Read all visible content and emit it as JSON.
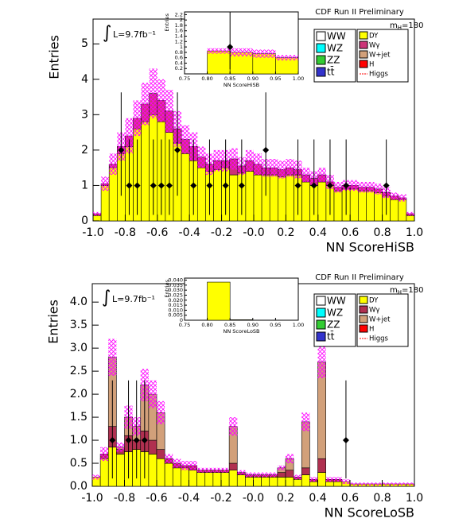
{
  "chart_data": [
    {
      "type": "histogram",
      "title": "CDF Run II Preliminary",
      "mass_label": {
        "m": "m",
        "sub": "H",
        "rest": "=180"
      },
      "integral": "∫",
      "lumi": "L=9.7fb⁻¹",
      "x_label": "NN ScoreHiSB",
      "y_label": "Entries",
      "xlim": [
        -1,
        1
      ],
      "ylim": [
        0,
        5.7
      ],
      "xticks": [
        {
          "value": -1,
          "label": "-1.0"
        },
        -0.8,
        -0.6,
        -0.4,
        -0.2,
        {
          "value": 0,
          "label": "-0.0"
        },
        0.2,
        0.4,
        0.6,
        0.8,
        {
          "value": 1,
          "label": "1.0"
        }
      ],
      "yticks": [
        0,
        1,
        2,
        3,
        4,
        5
      ],
      "bins": [
        -1,
        -0.95,
        -0.9,
        -0.85,
        -0.8,
        -0.75,
        -0.7,
        -0.65,
        -0.6,
        -0.55,
        -0.5,
        -0.45,
        -0.4,
        -0.35,
        -0.3,
        -0.25,
        -0.2,
        -0.15,
        -0.1,
        -0.05,
        0,
        0.05,
        0.1,
        0.15,
        0.2,
        0.25,
        0.3,
        0.35,
        0.4,
        0.45,
        0.5,
        0.55,
        0.6,
        0.65,
        0.7,
        0.75,
        0.8,
        0.85,
        0.9,
        0.95,
        1
      ],
      "series": [
        {
          "name": "DY",
          "color": "#ffff00",
          "values": [
            0.15,
            1.0,
            1.5,
            1.9,
            2.1,
            2.6,
            2.8,
            3.0,
            2.8,
            2.5,
            2.2,
            1.9,
            1.7,
            1.5,
            1.4,
            1.45,
            1.5,
            1.3,
            1.35,
            1.4,
            1.3,
            1.3,
            1.3,
            1.25,
            1.3,
            1.3,
            1.1,
            1.0,
            1.1,
            1.0,
            0.85,
            0.9,
            0.9,
            0.85,
            0.85,
            0.8,
            0.7,
            0.6,
            0.6,
            0.15
          ]
        },
        {
          "name": "Wγ",
          "color": "#cc3377",
          "values": [
            0.05,
            0.05,
            0.1,
            0.2,
            0.3,
            0.3,
            0.5,
            0.6,
            0.6,
            0.6,
            0.4,
            0.4,
            0.4,
            0.3,
            0.2,
            0.25,
            0.2,
            0.45,
            0.2,
            0.3,
            0.3,
            0.2,
            0.2,
            0.2,
            0.2,
            0.15,
            0.2,
            0.2,
            0.2,
            0.1,
            0.1,
            0.1,
            0.1,
            0.1,
            0.1,
            0.1,
            0.1,
            0.1,
            0.05,
            0.05
          ]
        },
        {
          "name": "W+jet",
          "color": "#d2a07a",
          "values": [
            0,
            0,
            0,
            0,
            0,
            0,
            0,
            0,
            0,
            0,
            0,
            0,
            0,
            0,
            0,
            0,
            0,
            0,
            0,
            0,
            0,
            0,
            0,
            0,
            0,
            0,
            0,
            0,
            0,
            0,
            0,
            0,
            0,
            0,
            0,
            0,
            0,
            0,
            0,
            0
          ]
        }
      ],
      "uncertainty": [
        0.05,
        0.2,
        0.3,
        0.4,
        0.5,
        0.5,
        0.6,
        0.7,
        0.6,
        0.6,
        0.5,
        0.4,
        0.4,
        0.3,
        0.3,
        0.3,
        0.3,
        0.3,
        0.25,
        0.3,
        0.3,
        0.25,
        0.25,
        0.25,
        0.25,
        0.25,
        0.2,
        0.2,
        0.2,
        0.2,
        0.15,
        0.15,
        0.15,
        0.15,
        0.15,
        0.15,
        0.15,
        0.1,
        0.1,
        0.05
      ],
      "data_points": {
        "x": [
          -0.825,
          -0.775,
          -0.725,
          -0.625,
          -0.575,
          -0.525,
          -0.475,
          -0.375,
          -0.275,
          -0.175,
          -0.075,
          0.075,
          0.275,
          0.375,
          0.475,
          0.575,
          0.825
        ],
        "values": [
          2,
          1,
          1,
          1,
          1,
          1,
          2,
          1,
          1,
          1,
          1,
          2,
          1,
          1,
          1,
          1,
          1
        ],
        "err_low": [
          1.29,
          0.83,
          0.83,
          0.83,
          0.83,
          0.83,
          1.29,
          0.83,
          0.83,
          0.83,
          0.83,
          1.29,
          0.83,
          0.83,
          0.83,
          0.83,
          0.83
        ],
        "err_high": [
          1.63,
          1.3,
          1.3,
          1.3,
          1.3,
          1.3,
          1.63,
          1.3,
          1.3,
          1.3,
          1.3,
          1.63,
          1.3,
          1.3,
          1.3,
          1.3,
          1.3
        ]
      },
      "legend_left": [
        {
          "name": "WW",
          "color": "#ffffff"
        },
        {
          "name": "WZ",
          "color": "#00ffff"
        },
        {
          "name": "ZZ",
          "color": "#33cc33"
        },
        {
          "name": "tt̄",
          "color": "#3333cc"
        }
      ],
      "legend_extra": [
        {
          "name": "H",
          "color": "#ff0000"
        },
        {
          "name": "Higgs",
          "color": "#ff0000",
          "style": "dashed"
        }
      ],
      "inset": {
        "x_label": "NN ScoreHiSB",
        "y_label": "Entries",
        "xlim": [
          0.75,
          1
        ],
        "ylim": [
          0,
          2.3
        ],
        "xticks": [
          0.75,
          {
            "value": 0.8,
            "label": "0.80"
          },
          0.85,
          {
            "value": 0.9,
            "label": "0.90"
          },
          0.95,
          {
            "value": 1,
            "label": "1.00"
          }
        ],
        "yticks": [
          0.2,
          0.4,
          0.6,
          0.8,
          1,
          1.2,
          1.4,
          1.6,
          1.8,
          2,
          2.2
        ],
        "bins": [
          0.75,
          0.8,
          0.85,
          0.9,
          0.95,
          1.0
        ],
        "values": [
          0,
          0.85,
          0.8,
          0.75,
          0.6
        ],
        "uncertainty": [
          0,
          0.1,
          0.15,
          0.15,
          0.1
        ],
        "data_points": {
          "x": [
            0.85
          ],
          "values": [
            1
          ],
          "err_low": [
            0.83
          ],
          "err_high": [
            1.3
          ]
        }
      }
    },
    {
      "type": "histogram",
      "title": "CDF Run II Preliminary",
      "mass_label": {
        "m": "m",
        "sub": "H",
        "rest": "=180"
      },
      "integral": "∫",
      "lumi": "L=9.7fb⁻¹",
      "x_label": "NN ScoreLoSB",
      "y_label": "Entries",
      "xlim": [
        -1,
        1
      ],
      "ylim": [
        0,
        4.4
      ],
      "xticks": [
        {
          "value": -1,
          "label": "-1.0"
        },
        -0.8,
        -0.6,
        -0.4,
        -0.2,
        {
          "value": 0,
          "label": "-0.0"
        },
        0.2,
        0.4,
        0.6,
        0.8,
        {
          "value": 1,
          "label": "1.0"
        }
      ],
      "yticks": [
        {
          "value": 0,
          "label": "0.0"
        },
        0.5,
        {
          "value": 1,
          "label": "1.0"
        },
        1.5,
        {
          "value": 2,
          "label": "2.0"
        },
        2.5,
        {
          "value": 3,
          "label": "3.0"
        },
        3.5,
        {
          "value": 4,
          "label": "4.0"
        }
      ],
      "bins": [
        -1,
        -0.95,
        -0.9,
        -0.85,
        -0.8,
        -0.75,
        -0.7,
        -0.65,
        -0.6,
        -0.55,
        -0.5,
        -0.45,
        -0.4,
        -0.35,
        -0.3,
        -0.25,
        -0.2,
        -0.15,
        -0.1,
        -0.05,
        0,
        0.05,
        0.1,
        0.15,
        0.2,
        0.25,
        0.3,
        0.35,
        0.4,
        0.45,
        0.5,
        0.55,
        0.6,
        0.65,
        0.7,
        0.75,
        0.8,
        0.85,
        0.9,
        0.95,
        1
      ],
      "series": [
        {
          "name": "DY",
          "color": "#ffff00",
          "values": [
            0.2,
            0.6,
            0.85,
            0.7,
            0.75,
            0.8,
            0.75,
            0.7,
            0.6,
            0.5,
            0.4,
            0.4,
            0.35,
            0.3,
            0.3,
            0.3,
            0.3,
            0.35,
            0.25,
            0.2,
            0.2,
            0.2,
            0.2,
            0.2,
            0.2,
            0.15,
            0.25,
            0.1,
            0.3,
            0.1,
            0.1,
            0.1,
            0.05,
            0.05,
            0.05,
            0.05,
            0.05,
            0.05,
            0.05,
            0.05
          ]
        },
        {
          "name": "Wγ",
          "color": "#b03050",
          "values": [
            0,
            0.1,
            0.45,
            0.1,
            0.35,
            0.2,
            0.45,
            0.3,
            0.2,
            0.1,
            0.1,
            0.05,
            0.1,
            0.05,
            0.05,
            0.05,
            0.05,
            0.15,
            0.05,
            0.05,
            0.05,
            0.05,
            0.05,
            0.1,
            0.15,
            0.05,
            0.15,
            0.05,
            0.3,
            0.05,
            0.05,
            0,
            0,
            0,
            0,
            0,
            0,
            0,
            0,
            0
          ]
        },
        {
          "name": "W+jet",
          "color": "#d2a07a",
          "values": [
            0,
            0,
            1.5,
            0.05,
            0.4,
            0.3,
            1.0,
            1.0,
            0.8,
            0,
            0,
            0,
            0,
            0,
            0,
            0,
            0,
            0.8,
            0,
            0,
            0,
            0,
            0,
            0.1,
            0.25,
            0,
            1.0,
            0,
            2.1,
            0,
            0,
            0,
            0,
            0,
            0,
            0,
            0,
            0,
            0,
            0
          ]
        }
      ],
      "uncertainty": [
        0.05,
        0.15,
        0.4,
        0.1,
        0.25,
        0.2,
        0.35,
        0.3,
        0.25,
        0.1,
        0.1,
        0.1,
        0.1,
        0.05,
        0.05,
        0.05,
        0.05,
        0.2,
        0.05,
        0.05,
        0.05,
        0.05,
        0.05,
        0.05,
        0.1,
        0.05,
        0.2,
        0.05,
        0.35,
        0.05,
        0.05,
        0.05,
        0.03,
        0.03,
        0.03,
        0.03,
        0.03,
        0.03,
        0.03,
        0.03
      ],
      "data_points": {
        "x": [
          -0.875,
          -0.775,
          -0.725,
          -0.675,
          0.575
        ],
        "values": [
          1,
          1,
          1,
          1,
          1
        ],
        "err_low": [
          0.83,
          0.83,
          0.83,
          0.83,
          0.83
        ],
        "err_high": [
          1.3,
          1.3,
          1.3,
          1.3,
          1.3
        ]
      },
      "legend_left": [
        {
          "name": "WW",
          "color": "#ffffff"
        },
        {
          "name": "WZ",
          "color": "#00ffff"
        },
        {
          "name": "ZZ",
          "color": "#33cc33"
        },
        {
          "name": "tt̄",
          "color": "#3333cc"
        }
      ],
      "legend_extra": [
        {
          "name": "H",
          "color": "#ff0000"
        },
        {
          "name": "Higgs",
          "color": "#ff0000",
          "style": "dashed"
        }
      ],
      "inset": {
        "x_label": "NN ScoreLoSB",
        "y_label": "Entries",
        "xlim": [
          0.75,
          1
        ],
        "ylim": [
          0,
          0.042
        ],
        "xticks": [
          0.75,
          {
            "value": 0.8,
            "label": "0.80"
          },
          0.85,
          {
            "value": 0.9,
            "label": "0.90"
          },
          0.95,
          {
            "value": 1,
            "label": "1.00"
          }
        ],
        "yticks": [
          0,
          0.005,
          {
            "value": 0.01,
            "label": "0.010"
          },
          0.015,
          {
            "value": 0.02,
            "label": "0.020"
          },
          0.025,
          {
            "value": 0.03,
            "label": "0.030"
          },
          0.035,
          {
            "value": 0.04,
            "label": "0.040"
          }
        ],
        "bins": [
          0.75,
          0.8,
          0.85,
          0.9,
          0.95,
          1.0
        ],
        "values": [
          0,
          0.038,
          0.0005,
          0,
          0
        ],
        "uncertainty": [
          0,
          0,
          0,
          0,
          0
        ],
        "data_points": {
          "x": [],
          "values": [],
          "err_low": [],
          "err_high": []
        }
      }
    }
  ]
}
